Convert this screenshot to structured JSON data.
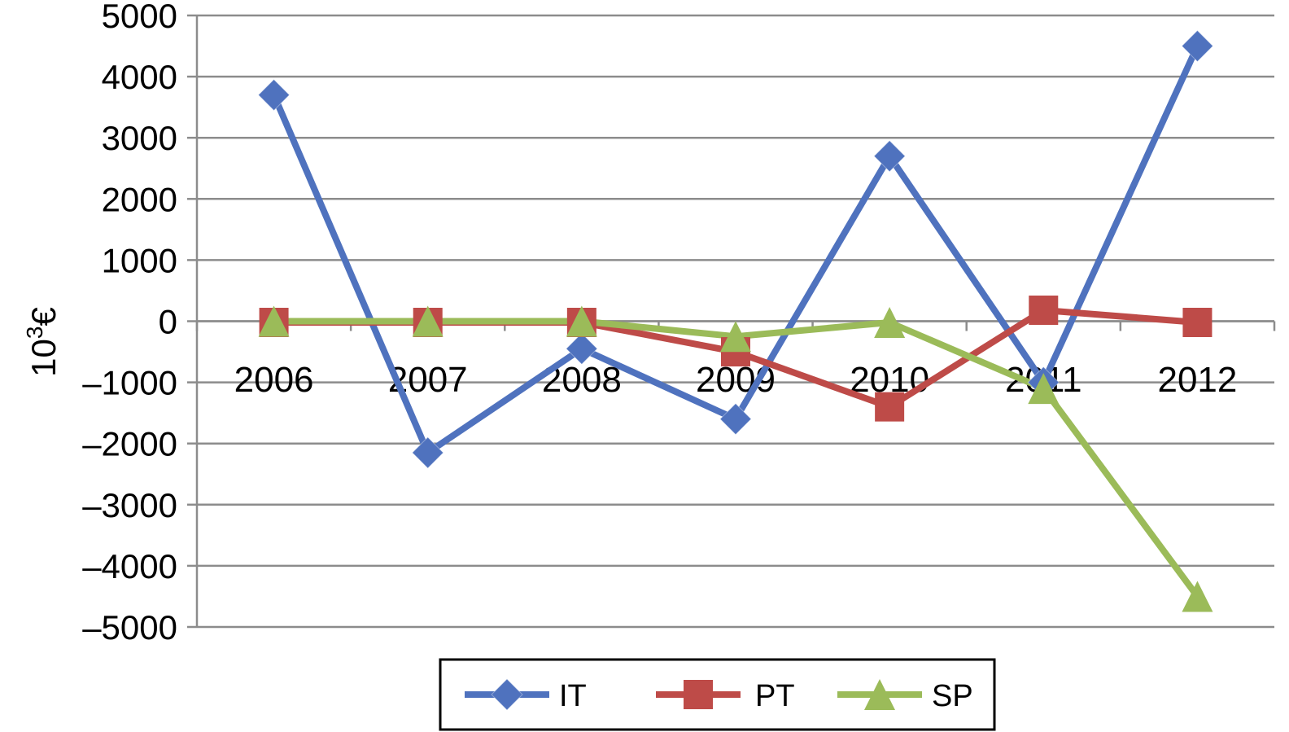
{
  "chart_data": {
    "type": "line",
    "title": "",
    "xlabel": "",
    "ylabel": "10³€",
    "ylabel_base": "10",
    "ylabel_sup": "3",
    "ylabel_unit": "€",
    "categories": [
      "2006",
      "2007",
      "2008",
      "2009",
      "2010",
      "2011",
      "2012"
    ],
    "ylim": [
      -5000,
      5000
    ],
    "yticks": [
      5000,
      4000,
      3000,
      2000,
      1000,
      0,
      -1000,
      -2000,
      -3000,
      -4000,
      -5000
    ],
    "ytick_labels": [
      "5000",
      "4000",
      "3000",
      "2000",
      "1000",
      "0",
      "–1000",
      "–2000",
      "–3000",
      "–4000",
      "–5000"
    ],
    "grid": true,
    "legend_position": "bottom",
    "series": [
      {
        "name": "IT",
        "color": "#4f72be",
        "marker": "diamond",
        "values": [
          3700,
          -2150,
          -450,
          -1600,
          2700,
          -1000,
          4500
        ]
      },
      {
        "name": "PT",
        "color": "#be4b48",
        "marker": "square",
        "values": [
          -20,
          -20,
          -20,
          -500,
          -1400,
          180,
          -20
        ]
      },
      {
        "name": "SP",
        "color": "#9bbb59",
        "marker": "triangle",
        "values": [
          0,
          0,
          0,
          -250,
          -20,
          -1100,
          -4500
        ]
      }
    ]
  }
}
